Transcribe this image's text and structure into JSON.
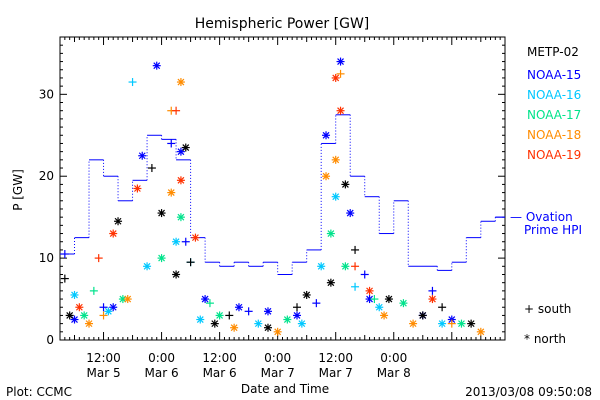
{
  "chart_data": {
    "type": "scatter",
    "title": "Hemispheric Power [GW]",
    "xlabel": "Date and Time",
    "ylabel": "P [GW]",
    "xlim": [
      "2013-03-05 03:00",
      "2013-03-08 23:00"
    ],
    "ylim": [
      0,
      37
    ],
    "x_ticks": [
      {
        "t": "2013-03-05 12:00",
        "label": [
          "12:00",
          "Mar 5"
        ]
      },
      {
        "t": "2013-03-06 00:00",
        "label": [
          "0:00",
          "Mar 6"
        ]
      },
      {
        "t": "2013-03-06 12:00",
        "label": [
          "12:00",
          "Mar 6"
        ]
      },
      {
        "t": "2013-03-07 00:00",
        "label": [
          "0:00",
          "Mar 7"
        ]
      },
      {
        "t": "2013-03-07 12:00",
        "label": [
          "12:00",
          "Mar 7"
        ]
      },
      {
        "t": "2013-03-08 00:00",
        "label": [
          "0:00",
          "Mar 8"
        ]
      }
    ],
    "y_ticks": [
      0,
      10,
      20,
      30
    ],
    "legend_title": "METP-02",
    "series": [
      {
        "name": "NOAA-15",
        "color": "#0000ff",
        "north": [
          [
            "2013-03-05 06:00",
            2.5
          ],
          [
            "2013-03-05 14:00",
            4.0
          ],
          [
            "2013-03-05 20:00",
            22.5
          ],
          [
            "2013-03-05 23:00",
            33.5
          ],
          [
            "2013-03-06 04:00",
            23.0
          ],
          [
            "2013-03-06 09:00",
            5.0
          ],
          [
            "2013-03-06 16:00",
            4.0
          ],
          [
            "2013-03-06 22:00",
            3.5
          ],
          [
            "2013-03-07 04:00",
            3.0
          ],
          [
            "2013-03-07 10:00",
            25.0
          ],
          [
            "2013-03-07 13:00",
            34.0
          ],
          [
            "2013-03-07 15:00",
            15.5
          ],
          [
            "2013-03-07 19:00",
            5.0
          ],
          [
            "2013-03-08 06:00",
            3.0
          ],
          [
            "2013-03-08 12:00",
            2.5
          ]
        ],
        "south": [
          [
            "2013-03-05 04:00",
            10.5
          ],
          [
            "2013-03-05 12:00",
            4.0
          ],
          [
            "2013-03-06 02:00",
            24.0
          ],
          [
            "2013-03-06 05:00",
            12.0
          ],
          [
            "2013-03-06 18:00",
            3.5
          ],
          [
            "2013-03-07 08:00",
            4.5
          ],
          [
            "2013-03-07 18:00",
            8.0
          ],
          [
            "2013-03-08 08:00",
            6.0
          ]
        ]
      },
      {
        "name": "NOAA-16",
        "color": "#00c8ff",
        "north": [
          [
            "2013-03-05 06:00",
            5.5
          ],
          [
            "2013-03-05 13:00",
            3.5
          ],
          [
            "2013-03-05 21:00",
            9.0
          ],
          [
            "2013-03-06 03:00",
            12.0
          ],
          [
            "2013-03-06 08:00",
            2.5
          ],
          [
            "2013-03-06 20:00",
            2.0
          ],
          [
            "2013-03-07 05:00",
            2.0
          ],
          [
            "2013-03-07 09:00",
            9.0
          ],
          [
            "2013-03-07 12:00",
            17.5
          ],
          [
            "2013-03-07 21:00",
            4.0
          ],
          [
            "2013-03-08 10:00",
            2.0
          ]
        ],
        "south": [
          [
            "2013-03-05 18:00",
            31.5
          ],
          [
            "2013-03-06 06:00",
            9.5
          ],
          [
            "2013-03-07 16:00",
            6.5
          ]
        ]
      },
      {
        "name": "NOAA-17",
        "color": "#00e38c",
        "north": [
          [
            "2013-03-05 08:00",
            3.0
          ],
          [
            "2013-03-05 16:00",
            5.0
          ],
          [
            "2013-03-06 00:00",
            10.0
          ],
          [
            "2013-03-06 04:00",
            15.0
          ],
          [
            "2013-03-06 12:00",
            3.0
          ],
          [
            "2013-03-07 02:00",
            2.5
          ],
          [
            "2013-03-07 11:00",
            13.0
          ],
          [
            "2013-03-07 14:00",
            9.0
          ],
          [
            "2013-03-08 02:00",
            4.5
          ],
          [
            "2013-03-08 14:00",
            2.0
          ]
        ],
        "south": [
          [
            "2013-03-05 10:00",
            6.0
          ],
          [
            "2013-03-06 10:00",
            4.5
          ],
          [
            "2013-03-07 20:00",
            5.0
          ]
        ]
      },
      {
        "name": "NOAA-18",
        "color": "#ff8c00",
        "north": [
          [
            "2013-03-05 09:00",
            2.0
          ],
          [
            "2013-03-05 17:00",
            5.0
          ],
          [
            "2013-03-06 02:00",
            18.0
          ],
          [
            "2013-03-06 04:00",
            31.5
          ],
          [
            "2013-03-06 15:00",
            1.5
          ],
          [
            "2013-03-07 00:00",
            1.0
          ],
          [
            "2013-03-07 10:00",
            20.0
          ],
          [
            "2013-03-07 12:00",
            22.0
          ],
          [
            "2013-03-07 22:00",
            3.0
          ],
          [
            "2013-03-08 04:00",
            2.0
          ],
          [
            "2013-03-08 18:00",
            1.0
          ]
        ],
        "south": [
          [
            "2013-03-05 12:00",
            3.0
          ],
          [
            "2013-03-06 02:00",
            28.0
          ],
          [
            "2013-03-07 13:00",
            32.5
          ],
          [
            "2013-03-08 12:00",
            2.0
          ]
        ]
      },
      {
        "name": "NOAA-19",
        "color": "#ff3200",
        "north": [
          [
            "2013-03-05 07:00",
            4.0
          ],
          [
            "2013-03-05 14:00",
            13.0
          ],
          [
            "2013-03-05 19:00",
            18.5
          ],
          [
            "2013-03-06 04:00",
            19.5
          ],
          [
            "2013-03-06 07:00",
            12.5
          ],
          [
            "2013-03-07 12:00",
            32.0
          ],
          [
            "2013-03-07 13:00",
            28.0
          ],
          [
            "2013-03-07 19:00",
            6.0
          ],
          [
            "2013-03-08 08:00",
            5.0
          ]
        ],
        "south": [
          [
            "2013-03-05 11:00",
            10.0
          ],
          [
            "2013-03-06 03:00",
            28.0
          ],
          [
            "2013-03-07 16:00",
            9.0
          ]
        ]
      },
      {
        "name": "METP-02",
        "color": "#000000",
        "north": [
          [
            "2013-03-05 05:00",
            3.0
          ],
          [
            "2013-03-05 15:00",
            14.5
          ],
          [
            "2013-03-06 00:00",
            15.5
          ],
          [
            "2013-03-06 03:00",
            8.0
          ],
          [
            "2013-03-06 05:00",
            23.5
          ],
          [
            "2013-03-06 11:00",
            2.0
          ],
          [
            "2013-03-06 22:00",
            1.5
          ],
          [
            "2013-03-07 06:00",
            5.5
          ],
          [
            "2013-03-07 11:00",
            7.0
          ],
          [
            "2013-03-07 14:00",
            19.0
          ],
          [
            "2013-03-07 23:00",
            5.0
          ],
          [
            "2013-03-08 06:00",
            3.0
          ],
          [
            "2013-03-08 16:00",
            2.0
          ]
        ],
        "south": [
          [
            "2013-03-05 04:00",
            7.5
          ],
          [
            "2013-03-05 22:00",
            21.0
          ],
          [
            "2013-03-06 06:00",
            9.5
          ],
          [
            "2013-03-06 14:00",
            3.0
          ],
          [
            "2013-03-07 04:00",
            4.0
          ],
          [
            "2013-03-07 16:00",
            11.0
          ],
          [
            "2013-03-08 10:00",
            4.0
          ]
        ]
      }
    ],
    "ovation": {
      "name": "Ovation Prime HPI",
      "color": "#0000ff",
      "steps": [
        [
          "2013-03-05 03:00",
          10.5
        ],
        [
          "2013-03-05 06:00",
          12.5
        ],
        [
          "2013-03-05 09:00",
          22.0
        ],
        [
          "2013-03-05 12:00",
          20.0
        ],
        [
          "2013-03-05 15:00",
          17.0
        ],
        [
          "2013-03-05 18:00",
          19.5
        ],
        [
          "2013-03-05 21:00",
          25.0
        ],
        [
          "2013-03-06 00:00",
          24.5
        ],
        [
          "2013-03-06 03:00",
          22.0
        ],
        [
          "2013-03-06 06:00",
          12.5
        ],
        [
          "2013-03-06 09:00",
          9.5
        ],
        [
          "2013-03-06 12:00",
          9.0
        ],
        [
          "2013-03-06 15:00",
          9.5
        ],
        [
          "2013-03-06 18:00",
          9.0
        ],
        [
          "2013-03-06 21:00",
          9.5
        ],
        [
          "2013-03-07 00:00",
          8.0
        ],
        [
          "2013-03-07 03:00",
          9.5
        ],
        [
          "2013-03-07 06:00",
          11.0
        ],
        [
          "2013-03-07 09:00",
          24.0
        ],
        [
          "2013-03-07 12:00",
          27.5
        ],
        [
          "2013-03-07 15:00",
          20.0
        ],
        [
          "2013-03-07 18:00",
          17.5
        ],
        [
          "2013-03-07 21:00",
          13.0
        ],
        [
          "2013-03-08 00:00",
          17.0
        ],
        [
          "2013-03-08 03:00",
          9.0
        ],
        [
          "2013-03-08 09:00",
          8.5
        ],
        [
          "2013-03-08 12:00",
          9.5
        ],
        [
          "2013-03-08 15:00",
          12.5
        ],
        [
          "2013-03-08 18:00",
          14.5
        ],
        [
          "2013-03-08 21:00",
          15.0
        ]
      ]
    },
    "legend": {
      "ovation_label": [
        "— Ovation",
        "Prime HPI"
      ],
      "south_label": "+ south",
      "north_label": "* north",
      "placement": "right"
    }
  },
  "footer": {
    "left": "Plot: CCMC",
    "right": "2013/03/08 09:50:08"
  }
}
